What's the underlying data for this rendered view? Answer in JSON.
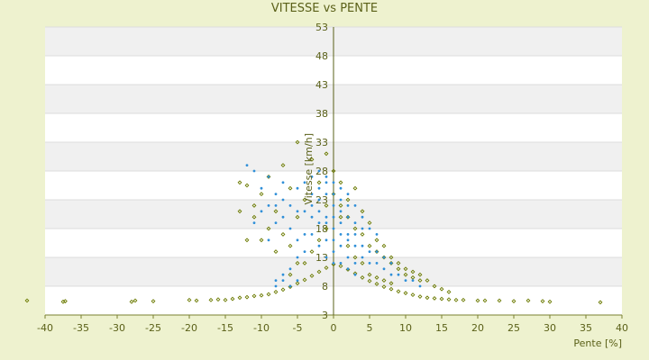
{
  "chart_data": {
    "type": "scatter",
    "title": "VITESSE vs PENTE",
    "xlabel": "Pente [%]",
    "ylabel": "Vitesse [km/h]",
    "xlim": [
      -40,
      40
    ],
    "ylim": [
      3,
      53
    ],
    "x_ticks": [
      -40,
      -35,
      -30,
      -25,
      -20,
      -15,
      -10,
      -5,
      0,
      5,
      10,
      15,
      20,
      25,
      30,
      35,
      40
    ],
    "y_ticks": [
      3,
      8,
      13,
      18,
      23,
      28,
      33,
      38,
      43,
      48,
      53
    ],
    "grid": "horizontal bands",
    "legend": "none",
    "series": [
      {
        "color": "#6b7a00",
        "marker": "diamond-small",
        "points": [
          [
            -42.5,
            5.5
          ],
          [
            -37.5,
            5.3
          ],
          [
            -37.2,
            5.4
          ],
          [
            -28,
            5.3
          ],
          [
            -27.5,
            5.5
          ],
          [
            -25,
            5.4
          ],
          [
            -20,
            5.6
          ],
          [
            -19,
            5.5
          ],
          [
            -17,
            5.6
          ],
          [
            -16,
            5.7
          ],
          [
            -15,
            5.6
          ],
          [
            -14,
            5.8
          ],
          [
            -13,
            6.0
          ],
          [
            -12,
            6.1
          ],
          [
            -11,
            6.3
          ],
          [
            -10,
            6.4
          ],
          [
            -9,
            6.6
          ],
          [
            -8,
            7.0
          ],
          [
            -7,
            7.4
          ],
          [
            -6,
            7.9
          ],
          [
            -5,
            8.5
          ],
          [
            -4,
            9.1
          ],
          [
            -3,
            9.8
          ],
          [
            -2,
            10.5
          ],
          [
            -1,
            11.2
          ],
          [
            0,
            11.8
          ],
          [
            1,
            11.5
          ],
          [
            2,
            10.9
          ],
          [
            3,
            10.2
          ],
          [
            4,
            9.5
          ],
          [
            5,
            8.9
          ],
          [
            6,
            8.4
          ],
          [
            7,
            7.9
          ],
          [
            8,
            7.5
          ],
          [
            9,
            7.1
          ],
          [
            10,
            6.8
          ],
          [
            11,
            6.5
          ],
          [
            12,
            6.2
          ],
          [
            13,
            6.0
          ],
          [
            14,
            5.9
          ],
          [
            15,
            5.8
          ],
          [
            16,
            5.7
          ],
          [
            17,
            5.6
          ],
          [
            18,
            5.6
          ],
          [
            20,
            5.5
          ],
          [
            21,
            5.5
          ],
          [
            23,
            5.5
          ],
          [
            25,
            5.4
          ],
          [
            27,
            5.5
          ],
          [
            29,
            5.4
          ],
          [
            30,
            5.3
          ],
          [
            37,
            5.2
          ],
          [
            -12,
            25.5
          ],
          [
            -11,
            22
          ],
          [
            -13,
            26
          ],
          [
            -10,
            24
          ],
          [
            -9,
            27
          ],
          [
            -8,
            21
          ],
          [
            -7,
            29
          ],
          [
            -6,
            25
          ],
          [
            -5,
            33
          ],
          [
            -5,
            20
          ],
          [
            -4,
            23
          ],
          [
            -3,
            30
          ],
          [
            -2,
            26
          ],
          [
            -1,
            31
          ],
          [
            0,
            24
          ],
          [
            1,
            22
          ],
          [
            2,
            20
          ],
          [
            3,
            18
          ],
          [
            4,
            17
          ],
          [
            5,
            15
          ],
          [
            6,
            14
          ],
          [
            7,
            13
          ],
          [
            8,
            12
          ],
          [
            9,
            11
          ],
          [
            10,
            10
          ],
          [
            11,
            9.5
          ],
          [
            12,
            9
          ],
          [
            -6,
            15
          ],
          [
            -7,
            17
          ],
          [
            -8,
            14
          ],
          [
            -9,
            18
          ],
          [
            -10,
            16
          ],
          [
            -4,
            12
          ],
          [
            -3,
            14
          ],
          [
            -2,
            16
          ],
          [
            -1,
            18
          ],
          [
            1,
            20
          ],
          [
            2,
            15
          ],
          [
            3,
            13
          ],
          [
            4,
            12
          ],
          [
            5,
            10
          ],
          [
            6,
            9.5
          ],
          [
            7,
            9
          ],
          [
            8,
            8.5
          ],
          [
            -11,
            20
          ],
          [
            -12,
            16
          ],
          [
            -13,
            21
          ],
          [
            -6,
            10
          ],
          [
            -5,
            12
          ],
          [
            0,
            28
          ],
          [
            1,
            26
          ],
          [
            -1,
            22
          ],
          [
            2,
            23
          ],
          [
            3,
            25
          ],
          [
            4,
            21
          ],
          [
            5,
            19
          ],
          [
            6,
            16
          ],
          [
            7,
            15
          ],
          [
            8,
            13
          ],
          [
            9,
            12
          ],
          [
            10,
            11
          ],
          [
            11,
            10.5
          ],
          [
            12,
            10
          ],
          [
            13,
            9
          ],
          [
            14,
            8
          ],
          [
            15,
            7.5
          ],
          [
            16,
            7
          ]
        ]
      },
      {
        "color": "#2f8fd8",
        "marker": "dot",
        "points": [
          [
            -12,
            29
          ],
          [
            -11,
            28
          ],
          [
            -10,
            25
          ],
          [
            -9,
            27
          ],
          [
            -8,
            24
          ],
          [
            -7,
            26
          ],
          [
            -6,
            22
          ],
          [
            -5,
            25
          ],
          [
            -4,
            21
          ],
          [
            -3,
            20
          ],
          [
            -2,
            23
          ],
          [
            -1,
            19
          ],
          [
            0,
            18
          ],
          [
            1,
            21
          ],
          [
            2,
            20
          ],
          [
            3,
            17
          ],
          [
            4,
            15
          ],
          [
            5,
            14
          ],
          [
            6,
            12
          ],
          [
            7,
            11
          ],
          [
            8,
            10
          ],
          [
            9,
            10
          ],
          [
            10,
            9
          ],
          [
            11,
            9
          ],
          [
            12,
            8
          ],
          [
            -3,
            17
          ],
          [
            -2,
            15
          ],
          [
            -1,
            16
          ],
          [
            0,
            14
          ],
          [
            1,
            15
          ],
          [
            2,
            13
          ],
          [
            3,
            12
          ],
          [
            -4,
            14
          ],
          [
            -5,
            13
          ],
          [
            -6,
            11
          ],
          [
            -7,
            10
          ],
          [
            -8,
            9
          ],
          [
            -1,
            24
          ],
          [
            0,
            22
          ],
          [
            1,
            19
          ],
          [
            2,
            17
          ],
          [
            -2,
            21
          ],
          [
            -1,
            27
          ],
          [
            0,
            26
          ],
          [
            1,
            25
          ],
          [
            2,
            24
          ],
          [
            3,
            22
          ],
          [
            4,
            20
          ],
          [
            5,
            18
          ],
          [
            6,
            17
          ],
          [
            -6,
            18
          ],
          [
            -7,
            20
          ],
          [
            -8,
            19
          ],
          [
            -10,
            21
          ],
          [
            -11,
            19
          ],
          [
            -9,
            16
          ],
          [
            -4,
            26
          ],
          [
            -3,
            24
          ],
          [
            -2,
            25
          ],
          [
            -1,
            20
          ],
          [
            0,
            20
          ],
          [
            0,
            16
          ],
          [
            1,
            17
          ],
          [
            2,
            16
          ],
          [
            3,
            15
          ],
          [
            4,
            13
          ],
          [
            5,
            12
          ],
          [
            6,
            14
          ],
          [
            7,
            13
          ],
          [
            8,
            12
          ],
          [
            4,
            18
          ],
          [
            3,
            19
          ],
          [
            -5,
            16
          ],
          [
            -4,
            17
          ],
          [
            -3,
            22
          ],
          [
            -2,
            19
          ],
          [
            1,
            23
          ],
          [
            2,
            22
          ],
          [
            0,
            24
          ],
          [
            -1,
            13
          ],
          [
            0,
            12
          ],
          [
            1,
            12
          ],
          [
            2,
            11
          ],
          [
            3,
            10
          ],
          [
            -7,
            9
          ],
          [
            -8,
            8
          ],
          [
            -6,
            8
          ],
          [
            -5,
            9
          ],
          [
            -9,
            22
          ],
          [
            -8,
            22
          ],
          [
            -7,
            23
          ],
          [
            -5,
            21
          ],
          [
            -3,
            27
          ],
          [
            -2,
            28
          ],
          [
            -1,
            26
          ]
        ]
      }
    ]
  }
}
